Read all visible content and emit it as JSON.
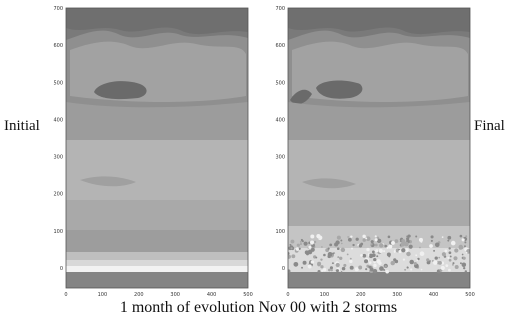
{
  "figure": {
    "left_label": "Initial",
    "right_label": "Final",
    "caption": "1 month of evolution Nov 00 with 2 storms",
    "y_ticks": [
      "700",
      "600",
      "500",
      "400",
      "300",
      "200",
      "100",
      "0"
    ],
    "x_ticks": [
      "0",
      "100",
      "200",
      "300",
      "400",
      "500"
    ],
    "palette": {
      "band_top": "#6f6f6f",
      "band_upper": "#8c8c8c",
      "band_mid": "#a5a5a5",
      "band_light": "#b9b9b9",
      "band_lower": "#9a9a9a",
      "band_floor": "#8a8a8a",
      "band_white": "#f4f4f4",
      "band_bottom": "#7d7d7d",
      "blob": "#6a6a6a"
    }
  }
}
